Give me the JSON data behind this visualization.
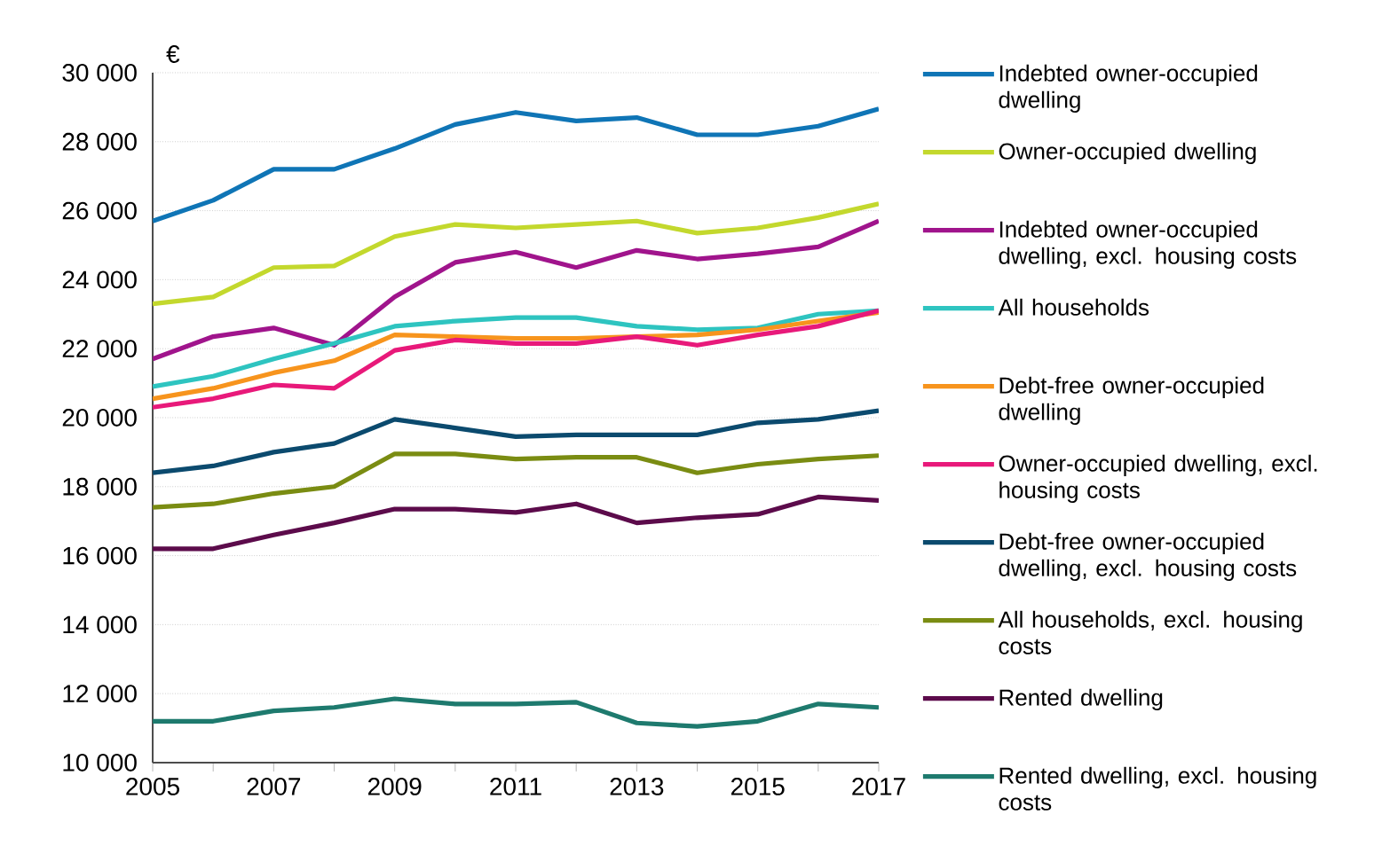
{
  "chart_data": {
    "type": "line",
    "ylabel": "€",
    "x": [
      2005,
      2006,
      2007,
      2008,
      2009,
      2010,
      2011,
      2012,
      2013,
      2014,
      2015,
      2016,
      2017
    ],
    "xlim": [
      2005,
      2017
    ],
    "xticks": [
      2005,
      {
        "value": 2006,
        "label": null
      },
      2007,
      {
        "value": 2008,
        "label": null
      },
      2009,
      {
        "value": 2010,
        "label": null
      },
      2011,
      {
        "value": 2012,
        "label": null
      },
      2013,
      {
        "value": 2014,
        "label": null
      },
      2015,
      {
        "value": 2016,
        "label": null
      },
      2017
    ],
    "ylim": [
      10000,
      30000
    ],
    "yticks": [
      {
        "value": 10000,
        "label": "10 000"
      },
      {
        "value": 12000,
        "label": "12 000"
      },
      {
        "value": 14000,
        "label": "14 000"
      },
      {
        "value": 16000,
        "label": "16 000"
      },
      {
        "value": 18000,
        "label": "18 000"
      },
      {
        "value": 20000,
        "label": "20 000"
      },
      {
        "value": 22000,
        "label": "22 000"
      },
      {
        "value": 24000,
        "label": "24 000"
      },
      {
        "value": 26000,
        "label": "26 000"
      },
      {
        "value": 28000,
        "label": "28 000"
      },
      {
        "value": 30000,
        "label": "30 000"
      }
    ],
    "grid": "y",
    "legend": "right",
    "marker": "none",
    "line_style": "solid",
    "series": [
      {
        "name": "Indebted owner-occupied dwelling",
        "color": "#0f75b6",
        "values": [
          25700,
          26300,
          27200,
          27200,
          27800,
          28500,
          28850,
          28600,
          28700,
          28200,
          28200,
          28450,
          28950
        ]
      },
      {
        "name": "Owner-occupied dwelling",
        "color": "#c3d82d",
        "values": [
          23300,
          23500,
          24350,
          24400,
          25250,
          25600,
          25500,
          25600,
          25700,
          25350,
          25500,
          25800,
          26200
        ]
      },
      {
        "name": "Indebted owner-occupied dwelling, excl. housing costs",
        "color": "#a0148c",
        "values": [
          21700,
          22350,
          22600,
          22100,
          23500,
          24500,
          24800,
          24350,
          24850,
          24600,
          24750,
          24950,
          25700
        ]
      },
      {
        "name": "All households",
        "color": "#2ec4c0",
        "values": [
          20900,
          21200,
          21700,
          22150,
          22650,
          22800,
          22900,
          22900,
          22650,
          22550,
          22600,
          23000,
          23100
        ]
      },
      {
        "name": "Debt-free owner-occupied dwelling",
        "color": "#f7941d",
        "values": [
          20550,
          20850,
          21300,
          21650,
          22400,
          22350,
          22300,
          22300,
          22350,
          22400,
          22550,
          22800,
          23050
        ]
      },
      {
        "name": "Owner-occupied dwelling, excl. housing costs",
        "color": "#e8197a",
        "values": [
          20300,
          20550,
          20950,
          20850,
          21950,
          22250,
          22150,
          22150,
          22350,
          22100,
          22400,
          22650,
          23100
        ]
      },
      {
        "name": "Debt-free owner-occupied dwelling, excl. housing costs",
        "color": "#0b4a6e",
        "values": [
          18400,
          18600,
          19000,
          19250,
          19950,
          19700,
          19450,
          19500,
          19500,
          19500,
          19850,
          19950,
          20200
        ]
      },
      {
        "name": "All households, excl. housing costs",
        "color": "#7a8c12",
        "values": [
          17400,
          17500,
          17800,
          18000,
          18950,
          18950,
          18800,
          18850,
          18850,
          18400,
          18650,
          18800,
          18900
        ]
      },
      {
        "name": "Rented dwelling",
        "color": "#5c0b4b",
        "values": [
          16200,
          16200,
          16600,
          16950,
          17350,
          17350,
          17250,
          17500,
          16950,
          17100,
          17200,
          17700,
          17600
        ]
      },
      {
        "name": "Rented dwelling, excl. housing costs",
        "color": "#1e7a6e",
        "values": [
          11200,
          11200,
          11500,
          11600,
          11850,
          11700,
          11700,
          11750,
          11150,
          11050,
          11200,
          11700,
          11600
        ]
      }
    ]
  }
}
